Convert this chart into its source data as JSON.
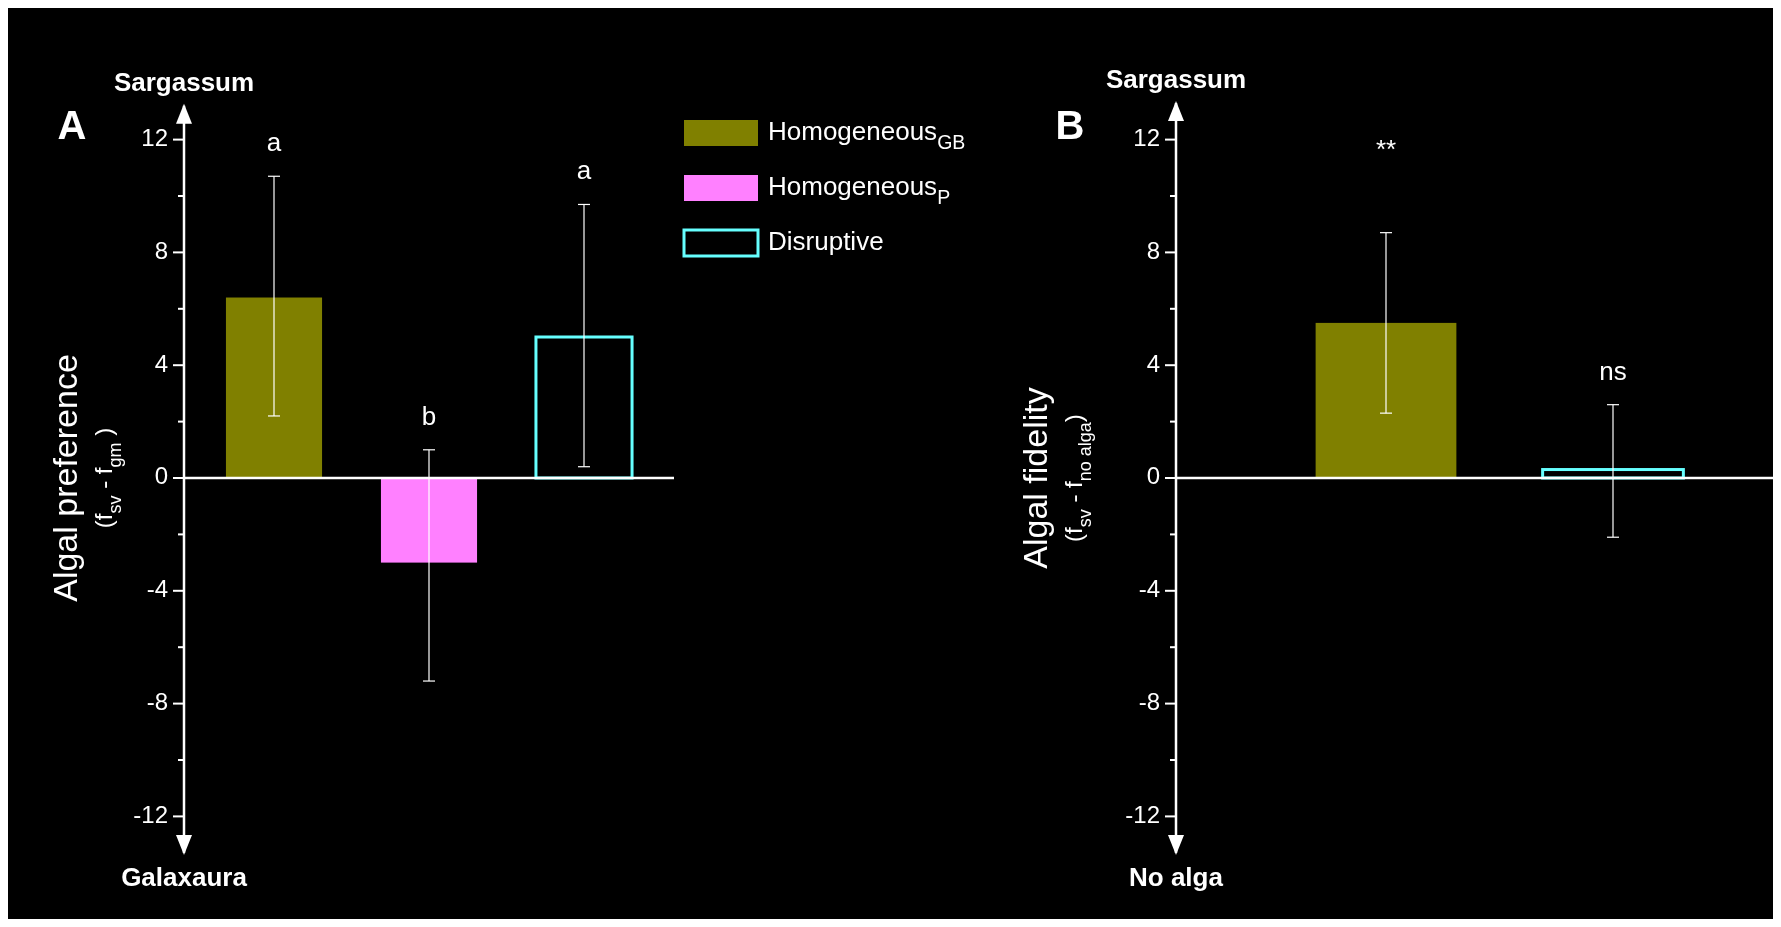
{
  "chart_data": [
    {
      "type": "bar",
      "title": "A",
      "ylabel": "Algal preference\n(f$_{sv}$ - f$_{gm}$ )",
      "categories": [
        null,
        null,
        null
      ],
      "series": [
        {
          "name": "Homogeneous$_{GB}$",
          "color": "#808000",
          "values": [
            6.4,
            null,
            null
          ],
          "errors": [
            [
              2.2,
              10.7
            ],
            null,
            null
          ]
        },
        {
          "name": "Homogeneous$_{P}$",
          "color": "#ff80ff",
          "values": [
            null,
            -3.0,
            null
          ],
          "errors": [
            null,
            [
              -7.2,
              1.0
            ],
            null
          ]
        },
        {
          "name": "Disruptive",
          "color": "#66ffff",
          "values": [
            null,
            null,
            5.0
          ],
          "errors": [
            null,
            null,
            [
              0.4,
              9.7
            ]
          ]
        }
      ],
      "ylim": [
        -13.3,
        13.2
      ],
      "yticks": [
        -12,
        {
          "value": -10,
          "label": null
        },
        -8,
        {
          "value": -6,
          "label": null
        },
        -4,
        {
          "value": -2,
          "label": null
        },
        0,
        {
          "value": 2,
          "label": null
        },
        4,
        {
          "value": 6,
          "label": null
        },
        8,
        {
          "value": 10,
          "label": null
        },
        12
      ],
      "annotations": [
        "a",
        "b",
        "a",
        "Sargassum",
        "Galaxaura"
      ],
      "legend": "top right"
    },
    {
      "type": "bar",
      "title": "B",
      "ylabel": "Algal fidelity\n(f$_{sv}$ - f$_{no alga}$)",
      "categories": [
        null,
        null
      ],
      "series": [
        {
          "color": "#808000",
          "values": [
            5.5,
            null
          ],
          "errors": [
            [
              2.3,
              8.7
            ],
            null
          ]
        },
        {
          "color": "#66ffff",
          "values": [
            null,
            0.3
          ],
          "errors": [
            null,
            [
              -2.1,
              2.6
            ]
          ]
        }
      ],
      "ylim": [
        -13.3,
        13.3
      ],
      "yticks": [
        -12,
        {
          "value": -10,
          "label": null
        },
        -8,
        {
          "value": -6,
          "label": null
        },
        -4,
        {
          "value": -2,
          "label": null
        },
        0,
        {
          "value": 2,
          "label": null
        },
        4,
        {
          "value": 6,
          "label": null
        },
        8,
        {
          "value": 10,
          "label": null
        },
        12
      ],
      "annotations": [
        "**",
        "ns",
        "Sargassum",
        "No alga"
      ]
    }
  ]
}
